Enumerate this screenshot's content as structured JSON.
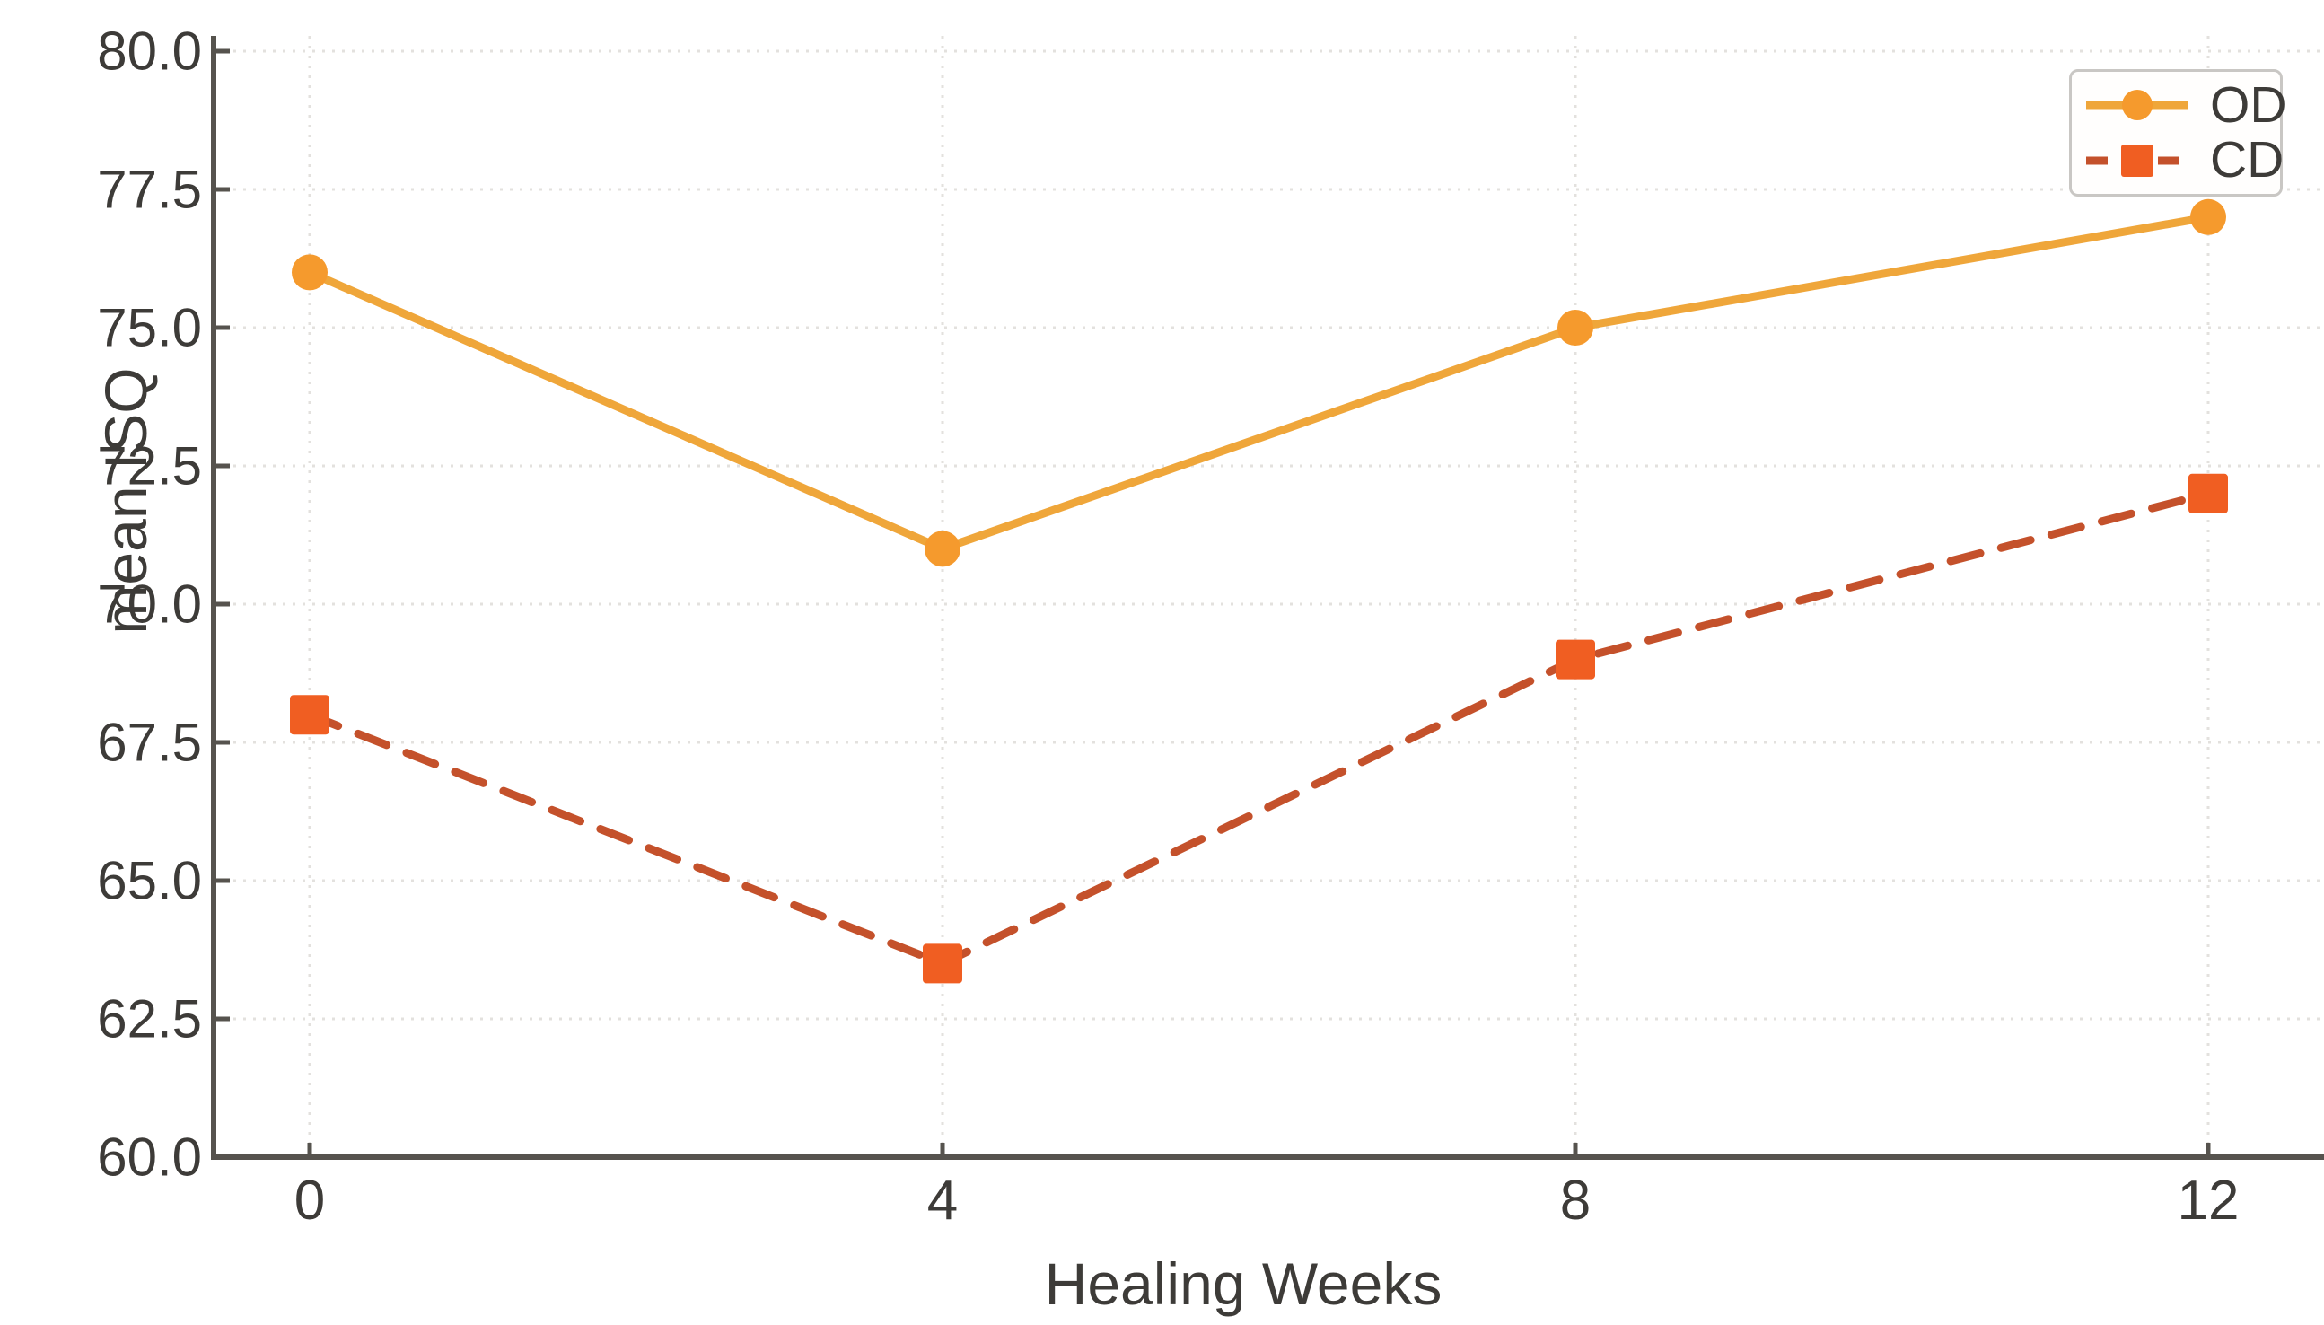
{
  "chart_data": {
    "type": "line",
    "title": "",
    "xlabel": "Healing Weeks",
    "ylabel": "mean ISQ",
    "x": [
      0,
      4,
      8,
      12
    ],
    "xtick_labels": [
      "0",
      "4",
      "8",
      "12"
    ],
    "ytick_values": [
      80.0,
      77.5,
      75.0,
      72.5,
      70.0,
      67.5,
      65.0,
      62.5,
      60.0
    ],
    "ytick_labels": [
      "80.0",
      "77.5",
      "75.0",
      "72.5",
      "70.0",
      "67.5",
      "65.0",
      "62.5",
      "60.0"
    ],
    "ylim": [
      60.0,
      80.0
    ],
    "grid": "dotted-both-axes",
    "legend_position": "top-right",
    "series": [
      {
        "name": "OD",
        "values": [
          76.0,
          71.0,
          75.0,
          77.0
        ],
        "line_color": "#EFA63A",
        "marker_color": "#F59A2D",
        "line_style": "solid",
        "marker": "circle"
      },
      {
        "name": "CD",
        "values": [
          68.0,
          63.5,
          69.0,
          72.0
        ],
        "line_color": "#C4512B",
        "marker_color": "#F05E22",
        "line_style": "dashed",
        "marker": "square"
      }
    ]
  },
  "colors": {
    "background": "#ffffff",
    "spine": "#56534e",
    "grid": "#e3e1de",
    "text": "#3d3b38",
    "legend_border": "#c9c7c4"
  }
}
